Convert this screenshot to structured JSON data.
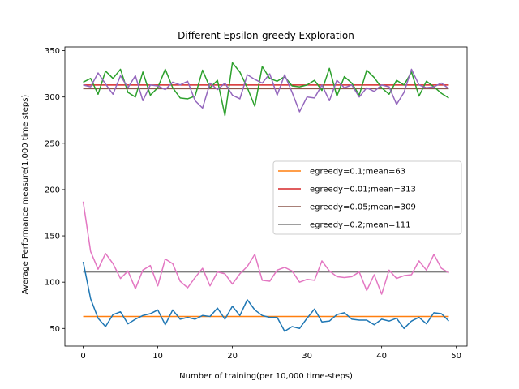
{
  "chart_data": {
    "type": "line",
    "title": "Different Epsilon-greedy Exploration",
    "xlabel": "Number of training(per 10,000 time-steps)",
    "ylabel": "Average Performance measure(1,000 time steps)",
    "xlim": [
      -2.45,
      51.45
    ],
    "ylim": [
      31,
      354
    ],
    "xticks": [
      0,
      10,
      20,
      30,
      40,
      50
    ],
    "yticks": [
      50,
      100,
      150,
      200,
      250,
      300,
      350
    ],
    "grid": false,
    "legend_position": "center-right",
    "legend": [
      {
        "label": "egreedy=0.1;mean=63",
        "color": "#ff7f0e"
      },
      {
        "label": "egreedy=0.01;mean=313",
        "color": "#d62728"
      },
      {
        "label": "egreedy=0.05;mean=309",
        "color": "#8c564b"
      },
      {
        "label": "egreedy=0.2;mean=111",
        "color": "#7f7f7f"
      }
    ],
    "hlines": [
      {
        "name": "egreedy=0.1;mean=63",
        "y": 63,
        "x": [
          0,
          49
        ],
        "color": "#ff7f0e"
      },
      {
        "name": "egreedy=0.01;mean=313",
        "y": 313,
        "x": [
          0,
          49
        ],
        "color": "#d62728"
      },
      {
        "name": "egreedy=0.05;mean=309",
        "y": 309,
        "x": [
          0,
          49
        ],
        "color": "#8c564b"
      },
      {
        "name": "egreedy=0.2;mean=111",
        "y": 111,
        "x": [
          0,
          49
        ],
        "color": "#7f7f7f"
      }
    ],
    "series": [
      {
        "color": "#1f77b4",
        "values": [
          122,
          82,
          61,
          52,
          65,
          68,
          55,
          60,
          64,
          66,
          70,
          54,
          70,
          60,
          62,
          60,
          64,
          63,
          72,
          60,
          74,
          64,
          81,
          70,
          64,
          62,
          62,
          47,
          52,
          50,
          61,
          71,
          57,
          58,
          65,
          67,
          60,
          59,
          59,
          54,
          60,
          58,
          61,
          50,
          58,
          62,
          55,
          67,
          66,
          58
        ]
      },
      {
        "color": "#2ca02c",
        "values": [
          316,
          320,
          303,
          328,
          320,
          330,
          305,
          300,
          327,
          302,
          310,
          330,
          310,
          299,
          298,
          301,
          329,
          310,
          318,
          280,
          337,
          327,
          310,
          290,
          333,
          320,
          317,
          322,
          312,
          311,
          313,
          318,
          307,
          331,
          301,
          322,
          315,
          302,
          329,
          321,
          310,
          303,
          318,
          313,
          327,
          301,
          317,
          311,
          304,
          299
        ]
      },
      {
        "color": "#9467bd",
        "values": [
          313,
          311,
          326,
          314,
          303,
          323,
          310,
          323,
          296,
          313,
          312,
          308,
          316,
          313,
          317,
          296,
          288,
          315,
          308,
          315,
          302,
          298,
          324,
          319,
          315,
          325,
          302,
          324,
          305,
          284,
          300,
          299,
          313,
          296,
          318,
          310,
          313,
          300,
          310,
          306,
          313,
          311,
          292,
          305,
          330,
          313,
          310,
          311,
          315,
          309
        ]
      },
      {
        "color": "#e377c2",
        "values": [
          187,
          133,
          114,
          131,
          120,
          104,
          112,
          93,
          113,
          118,
          96,
          125,
          120,
          101,
          94,
          105,
          115,
          96,
          111,
          109,
          98,
          109,
          117,
          130,
          102,
          101,
          113,
          116,
          112,
          100,
          103,
          102,
          123,
          112,
          106,
          105,
          106,
          111,
          91,
          108,
          87,
          113,
          104,
          107,
          108,
          123,
          113,
          130,
          115,
          110
        ]
      }
    ]
  }
}
